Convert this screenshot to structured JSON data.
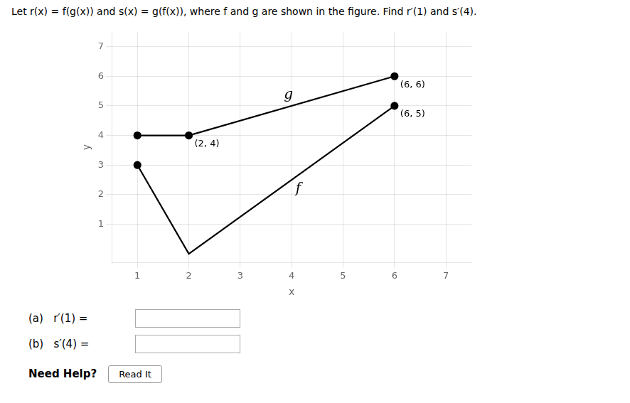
{
  "chart_data": {
    "type": "line",
    "title": "Let r(x) = f(g(x)) and s(x) = g(f(x)), where f and g are shown in the figure. Find r′(1) and s′(4).",
    "x_label": "x",
    "y_label": "y",
    "series": [
      {
        "name": "f",
        "color": "#000000",
        "x": [
          1,
          2,
          6
        ],
        "values": [
          3,
          0,
          5
        ]
      },
      {
        "name": "g",
        "color": "#000000",
        "x": [
          1,
          2,
          6
        ],
        "values": [
          4,
          4,
          6
        ]
      },
      {
        "type": "scatter",
        "marker": "circle",
        "color": "#000000",
        "x": [
          2,
          6,
          6,
          1,
          1
        ],
        "values": [
          4,
          6,
          5,
          3,
          4
        ]
      }
    ],
    "annotations": [
      {
        "text": "(6, 6)",
        "x": 6,
        "y": 6
      },
      {
        "text": "(6, 5)",
        "x": 6,
        "y": 5
      },
      {
        "text": "(2, 4)",
        "x": 2,
        "y": 4
      }
    ],
    "xlim": [
      0.5,
      7.5
    ],
    "ylim": [
      -0.3,
      7.5
    ],
    "xticks": [
      1,
      2,
      3,
      4,
      5,
      6,
      7
    ],
    "yticks": [
      1,
      2,
      3,
      4,
      5,
      6,
      7
    ],
    "grid": true,
    "form_texts": [
      "(a)   r′(1) =",
      "(b)   s′(4) =",
      "Need Help?",
      "Read It"
    ]
  }
}
